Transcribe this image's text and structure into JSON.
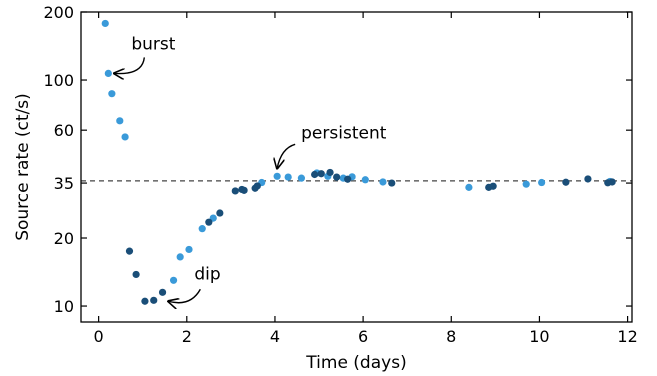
{
  "chart_data": {
    "type": "scatter",
    "xlabel": "Time (days)",
    "ylabel": "Source rate (ct/s)",
    "xlim": [
      -0.4,
      12.1
    ],
    "ylim": [
      8.5,
      200
    ],
    "yscale": "log",
    "x_ticks": [
      0,
      2,
      4,
      6,
      8,
      10,
      12
    ],
    "y_ticks": [
      10,
      20,
      35,
      60,
      100,
      200
    ],
    "grid": false,
    "reference_line": {
      "y": 35.8,
      "style": "dashed",
      "color": "#444444"
    },
    "colors": {
      "light": "#3a9ad9",
      "dark": "#1a4e78"
    },
    "series": [
      {
        "color": "#3a9ad9",
        "points": [
          [
            0.15,
            178
          ],
          [
            0.22,
            107
          ],
          [
            0.3,
            87
          ],
          [
            0.48,
            66
          ],
          [
            0.6,
            56
          ],
          [
            1.7,
            13
          ],
          [
            1.85,
            16.5
          ],
          [
            2.05,
            17.8
          ],
          [
            2.35,
            22
          ],
          [
            2.6,
            24.5
          ],
          [
            3.7,
            35.2
          ],
          [
            4.05,
            37.5
          ],
          [
            4.3,
            37.2
          ],
          [
            4.6,
            36.8
          ],
          [
            4.95,
            38.8
          ],
          [
            5.2,
            37.5
          ],
          [
            5.55,
            36.8
          ],
          [
            5.75,
            37.3
          ],
          [
            6.05,
            36.2
          ],
          [
            6.45,
            35.4
          ],
          [
            8.4,
            33.5
          ],
          [
            9.7,
            34.6
          ],
          [
            10.05,
            35.2
          ],
          [
            11.6,
            35.6
          ]
        ]
      },
      {
        "color": "#1a4e78",
        "points": [
          [
            0.7,
            17.5
          ],
          [
            0.85,
            13.8
          ],
          [
            1.05,
            10.5
          ],
          [
            1.25,
            10.6
          ],
          [
            1.45,
            11.5
          ],
          [
            2.5,
            23.5
          ],
          [
            2.75,
            25.8
          ],
          [
            3.1,
            32.3
          ],
          [
            3.25,
            32.8
          ],
          [
            3.3,
            32.5
          ],
          [
            3.55,
            33.2
          ],
          [
            3.6,
            34.0
          ],
          [
            4.9,
            38.2
          ],
          [
            5.05,
            38.5
          ],
          [
            5.25,
            39.0
          ],
          [
            5.4,
            37.2
          ],
          [
            5.65,
            36.4
          ],
          [
            6.65,
            35.0
          ],
          [
            8.85,
            33.5
          ],
          [
            8.95,
            33.9
          ],
          [
            10.6,
            35.3
          ],
          [
            11.1,
            36.5
          ],
          [
            11.55,
            35.1
          ],
          [
            11.65,
            35.4
          ]
        ]
      }
    ],
    "annotations": [
      {
        "text": "burst",
        "target": [
          0.22,
          107
        ]
      },
      {
        "text": "persistent",
        "target": [
          4.05,
          37.5
        ]
      },
      {
        "text": "dip",
        "target": [
          1.4,
          10.5
        ]
      }
    ]
  }
}
